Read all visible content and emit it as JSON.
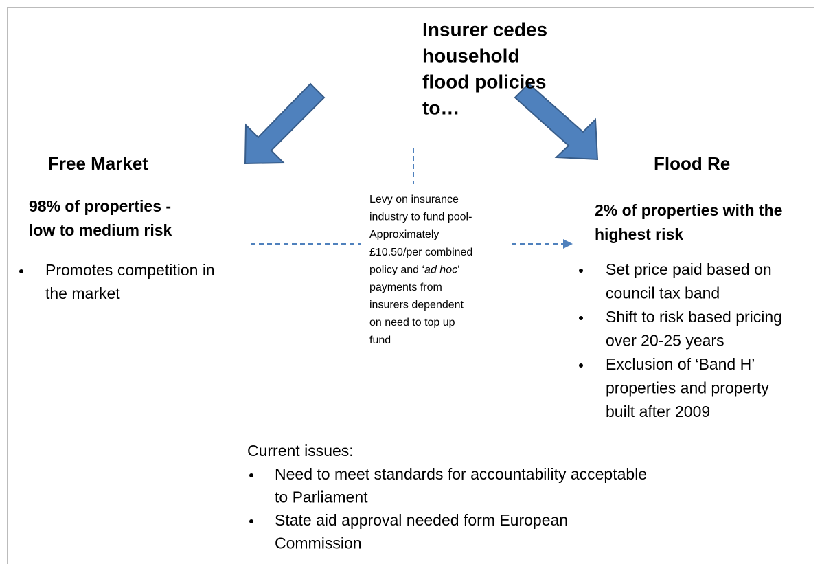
{
  "title": [
    "Insurer cedes",
    "household",
    "flood policies",
    "to…"
  ],
  "left": {
    "heading": "Free Market",
    "subheading": [
      "98% of properties -",
      "low to medium risk"
    ],
    "bullets": [
      [
        "Promotes competition in",
        "the market"
      ]
    ]
  },
  "right": {
    "heading": "Flood Re",
    "subheading": [
      "2% of properties with the",
      "highest risk"
    ],
    "bullets": [
      [
        "Set price paid based on",
        "council tax band"
      ],
      [
        "Shift to risk based pricing",
        "over 20-25 years"
      ],
      [
        "Exclusion of ‘Band H’",
        "properties and property",
        "built after 2009"
      ]
    ]
  },
  "levy": [
    [
      "Levy on insurance"
    ],
    [
      "industry to fund pool-"
    ],
    [
      "Approximately"
    ],
    [
      "£10.50/per combined"
    ],
    [
      "policy and ‘",
      "ad hoc",
      "’"
    ],
    [
      "payments from"
    ],
    [
      "insurers dependent"
    ],
    [
      "on need to top up"
    ],
    [
      "fund"
    ]
  ],
  "issues": {
    "heading": "Current issues:",
    "bullets": [
      [
        "Need to meet standards for accountability acceptable",
        "to Parliament"
      ],
      [
        "State aid approval needed form European",
        "Commission"
      ]
    ]
  }
}
